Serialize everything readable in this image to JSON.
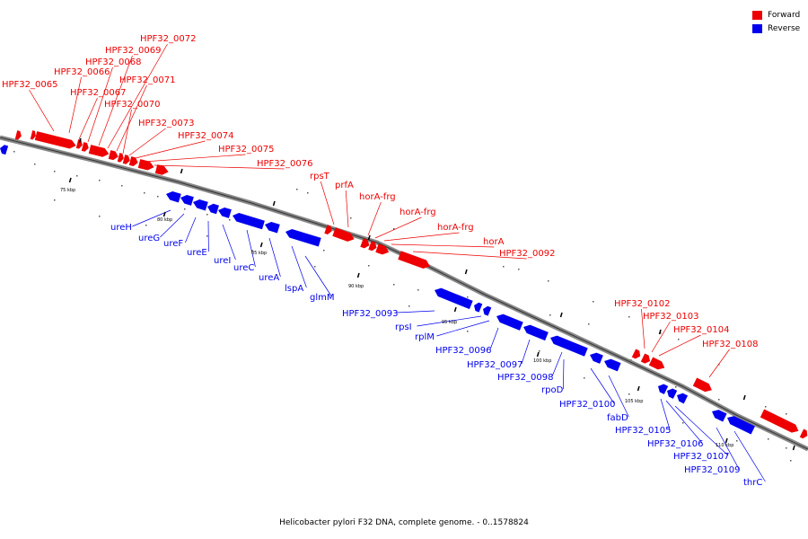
{
  "legend": {
    "forward_label": "Forward",
    "reverse_label": "Reverse",
    "forward_color": "#ee0000",
    "reverse_color": "#0000ee"
  },
  "caption": "Helicobacter pylori F32 DNA, complete genome. - 0..1578824",
  "tick_labels": [
    "75 kbp",
    "80 kbp",
    "85 kbp",
    "90 kbp",
    "95 kbp",
    "100 kbp",
    "105 kbp",
    "110 kbp"
  ],
  "forward_labels": [
    "HPF32_0065",
    "HPF32_0066",
    "HPF32_0067",
    "HPF32_0068",
    "HPF32_0069",
    "HPF32_0072",
    "HPF32_0071",
    "HPF32_0070",
    "HPF32_0073",
    "HPF32_0074",
    "HPF32_0075",
    "HPF32_0076",
    "rpsT",
    "prfA",
    "horA-frg",
    "horA-frg",
    "horA-frg",
    "horA",
    "HPF32_0092",
    "HPF32_0102",
    "HPF32_0103",
    "HPF32_0104",
    "HPF32_0108"
  ],
  "reverse_labels": [
    "ureH",
    "ureG",
    "ureF",
    "ureE",
    "ureI",
    "ureC",
    "ureA",
    "lspA",
    "glmM",
    "HPF32_0093",
    "rpsI",
    "rplM",
    "HPF32_0096",
    "HPF32_0097",
    "HPF32_0098",
    "rpoD",
    "HPF32_0100",
    "fabD",
    "HPF32_0105",
    "HPF32_0106",
    "HPF32_0107",
    "HPF32_0109",
    "thrC"
  ]
}
